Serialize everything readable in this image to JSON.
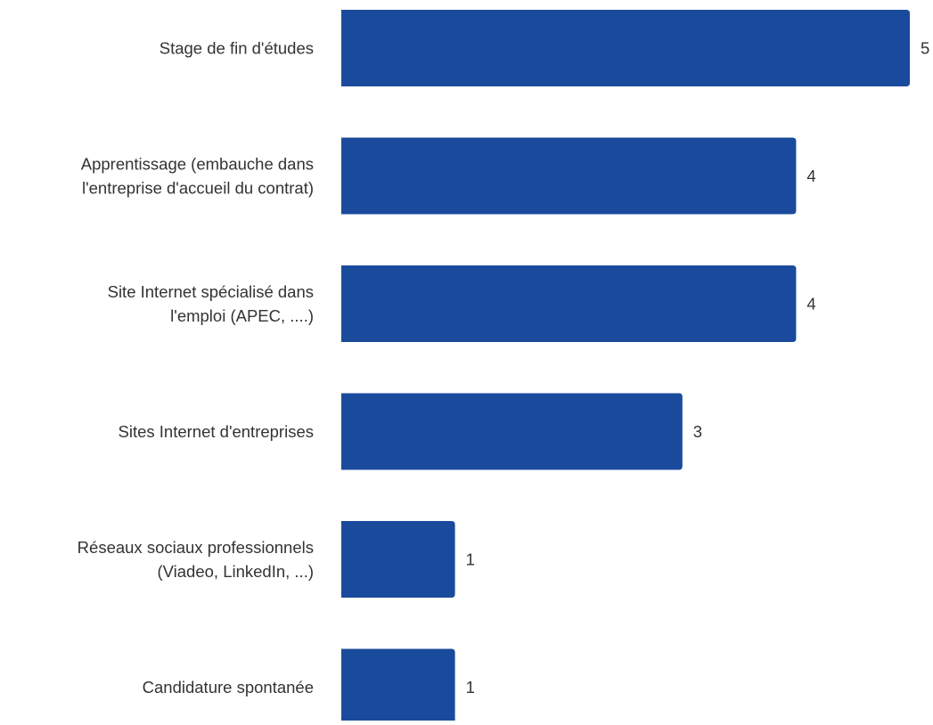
{
  "chart_data": {
    "type": "bar",
    "orientation": "horizontal",
    "title": "",
    "xlabel": "",
    "ylabel": "",
    "xlim": [
      0,
      5
    ],
    "grid": false,
    "legend": "none",
    "bar_color": "#1a4a9c",
    "categories": [
      [
        "Stage de fin d'études"
      ],
      [
        "Apprentissage (embauche dans",
        "l'entreprise d'accueil du contrat)"
      ],
      [
        "Site Internet spécialisé dans",
        "l'emploi (APEC, ....)"
      ],
      [
        "Sites Internet d'entreprises"
      ],
      [
        "Réseaux sociaux professionnels",
        "(Viadeo, LinkedIn, ...)"
      ],
      [
        "Candidature spontanée"
      ]
    ],
    "values": [
      5,
      4,
      4,
      3,
      1,
      1
    ]
  }
}
